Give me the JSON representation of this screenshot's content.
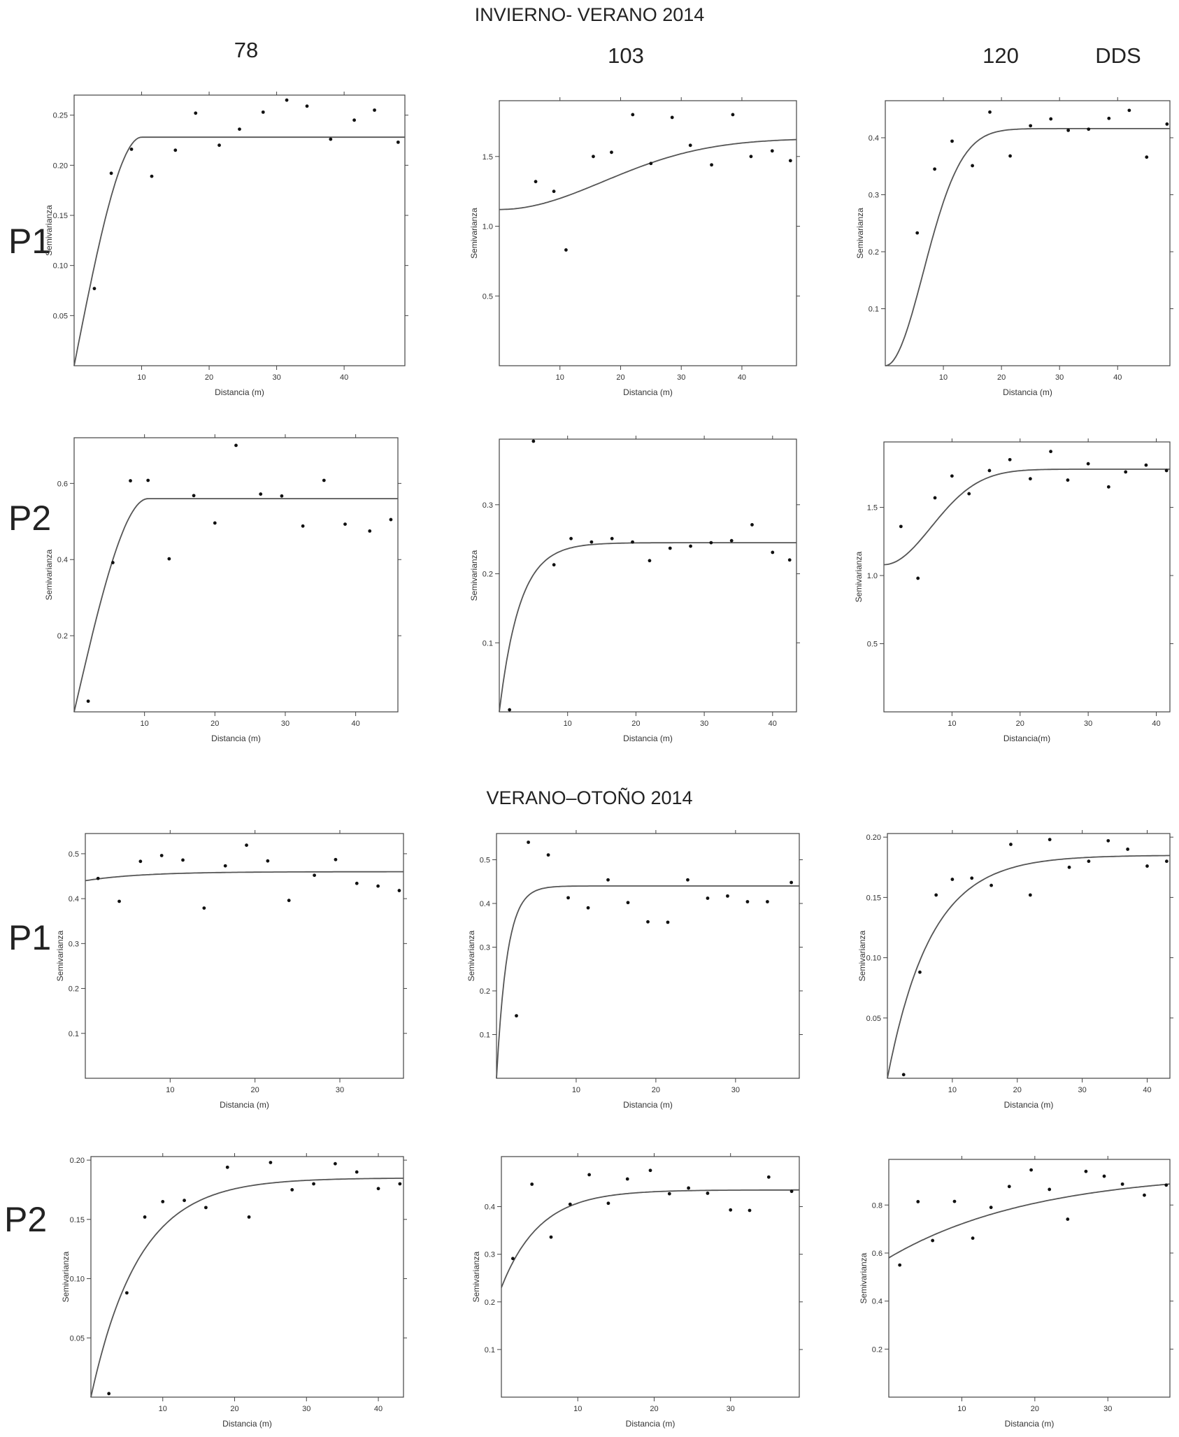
{
  "sections": [
    {
      "title": "INVIERNO- VERANO 2014"
    },
    {
      "title": "VERANO–OTOÑO 2014"
    }
  ],
  "columns": [
    {
      "label": "78"
    },
    {
      "label": "103"
    },
    {
      "label": "120"
    },
    {
      "label": "DDS"
    }
  ],
  "rows": [
    {
      "label": "P1"
    },
    {
      "label": "P2"
    },
    {
      "label": "P1"
    },
    {
      "label": "P2"
    }
  ],
  "chart_data": [
    {
      "type": "scatter",
      "section": "INVIERNO- VERANO 2014",
      "row": "P1",
      "column": "78",
      "xlabel": "Distancia (m)",
      "ylabel": "Semivarianza",
      "xlim": [
        0,
        49
      ],
      "ylim": [
        0,
        0.27
      ],
      "xticks": [
        10,
        20,
        30,
        40
      ],
      "yticks": [
        0.05,
        0.1,
        0.15,
        0.2,
        0.25
      ],
      "yticklabels": [
        "0.05",
        "0.10",
        "0.15",
        "0.20",
        "0.25"
      ],
      "points": [
        [
          3,
          0.077
        ],
        [
          5.5,
          0.192
        ],
        [
          8.5,
          0.216
        ],
        [
          11.5,
          0.189
        ],
        [
          15,
          0.215
        ],
        [
          18,
          0.252
        ],
        [
          21.5,
          0.22
        ],
        [
          24.5,
          0.236
        ],
        [
          28,
          0.253
        ],
        [
          31.5,
          0.265
        ],
        [
          34.5,
          0.259
        ],
        [
          38,
          0.226
        ],
        [
          41.5,
          0.245
        ],
        [
          44.5,
          0.255
        ],
        [
          48,
          0.223
        ]
      ],
      "model": "spherical",
      "nugget": 0,
      "sill": 0.228,
      "range": 10
    },
    {
      "type": "scatter",
      "section": "INVIERNO- VERANO 2014",
      "row": "P1",
      "column": "103",
      "xlabel": "Distancia (m)",
      "ylabel": "Semivarianza",
      "xlim": [
        0,
        49
      ],
      "ylim": [
        0,
        1.9
      ],
      "xticks": [
        10,
        20,
        30,
        40
      ],
      "yticks": [
        0.5,
        1.0,
        1.5
      ],
      "yticklabels": [
        "0.5",
        "1.0",
        "1.5"
      ],
      "points": [
        [
          6,
          1.32
        ],
        [
          9,
          1.25
        ],
        [
          11,
          0.83
        ],
        [
          15.5,
          1.5
        ],
        [
          18.5,
          1.53
        ],
        [
          22,
          1.8
        ],
        [
          25,
          1.45
        ],
        [
          28.5,
          1.78
        ],
        [
          31.5,
          1.58
        ],
        [
          35,
          1.44
        ],
        [
          38.5,
          1.8
        ],
        [
          41.5,
          1.5
        ],
        [
          45,
          1.54
        ],
        [
          48,
          1.47
        ]
      ],
      "model": "gaussian",
      "nugget": 1.12,
      "sill": 1.63,
      "range": 42
    },
    {
      "type": "scatter",
      "section": "INVIERNO- VERANO 2014",
      "row": "P1",
      "column": "120",
      "xlabel": "Distancia (m)",
      "ylabel": "Semivarianza",
      "xlim": [
        0,
        49
      ],
      "ylim": [
        0,
        0.465
      ],
      "xticks": [
        10,
        20,
        30,
        40
      ],
      "yticks": [
        0.1,
        0.2,
        0.3,
        0.4
      ],
      "yticklabels": [
        "0.1",
        "0.2",
        "0.3",
        "0.4"
      ],
      "points": [
        [
          5.5,
          0.233
        ],
        [
          8.5,
          0.345
        ],
        [
          11.5,
          0.394
        ],
        [
          15,
          0.351
        ],
        [
          18,
          0.445
        ],
        [
          21.5,
          0.368
        ],
        [
          25,
          0.421
        ],
        [
          28.5,
          0.433
        ],
        [
          31.5,
          0.413
        ],
        [
          35,
          0.415
        ],
        [
          38.5,
          0.434
        ],
        [
          42,
          0.448
        ],
        [
          45,
          0.366
        ],
        [
          48.5,
          0.424
        ]
      ],
      "model": "gaussian",
      "nugget": 0,
      "sill": 0.416,
      "range": 16
    },
    {
      "type": "scatter",
      "section": "INVIERNO- VERANO 2014",
      "row": "P2",
      "column": "78",
      "xlabel": "Distancia (m)",
      "ylabel": "Semivarianza",
      "xlim": [
        0,
        46
      ],
      "ylim": [
        0,
        0.72
      ],
      "xticks": [
        10,
        20,
        30,
        40
      ],
      "yticks": [
        0.2,
        0.4,
        0.6
      ],
      "yticklabels": [
        "0.2",
        "0.4",
        "0.6"
      ],
      "points": [
        [
          2,
          0.028
        ],
        [
          5.5,
          0.392
        ],
        [
          8,
          0.607
        ],
        [
          10.5,
          0.608
        ],
        [
          13.5,
          0.402
        ],
        [
          17,
          0.568
        ],
        [
          20,
          0.496
        ],
        [
          23,
          0.7
        ],
        [
          26.5,
          0.572
        ],
        [
          29.5,
          0.567
        ],
        [
          32.5,
          0.488
        ],
        [
          35.5,
          0.608
        ],
        [
          38.5,
          0.493
        ],
        [
          42,
          0.475
        ],
        [
          45,
          0.505
        ]
      ],
      "model": "spherical",
      "nugget": 0,
      "sill": 0.56,
      "range": 10.5
    },
    {
      "type": "scatter",
      "section": "INVIERNO- VERANO 2014",
      "row": "P2",
      "column": "103",
      "xlabel": "Distancia (m)",
      "ylabel": "Semivarianza",
      "xlim": [
        0,
        43.5
      ],
      "ylim": [
        0,
        0.395
      ],
      "xticks": [
        10,
        20,
        30,
        40
      ],
      "yticks": [
        0.1,
        0.2,
        0.3
      ],
      "yticklabels": [
        "0.1",
        "0.2",
        "0.3"
      ],
      "xticklabels": [
        "10",
        "20",
        "30",
        "40"
      ],
      "points": [
        [
          1.5,
          0.003
        ],
        [
          5,
          0.392
        ],
        [
          8,
          0.213
        ],
        [
          10.5,
          0.251
        ],
        [
          13.5,
          0.246
        ],
        [
          16.5,
          0.251
        ],
        [
          19.5,
          0.246
        ],
        [
          22,
          0.219
        ],
        [
          25,
          0.237
        ],
        [
          28,
          0.24
        ],
        [
          31,
          0.245
        ],
        [
          34,
          0.248
        ],
        [
          37,
          0.271
        ],
        [
          40,
          0.231
        ],
        [
          42.5,
          0.22
        ]
      ],
      "model": "exponential",
      "nugget": 0,
      "sill": 0.245,
      "range": 9
    },
    {
      "type": "scatter",
      "section": "INVIERNO- VERANO 2014",
      "row": "P2",
      "column": "120",
      "xlabel": "Distancia(m)",
      "ylabel": "Semivarianza",
      "xlim": [
        0,
        42
      ],
      "ylim": [
        0,
        1.98
      ],
      "xticks": [
        10,
        20,
        30,
        40
      ],
      "yticks": [
        0.5,
        1.0,
        1.5
      ],
      "yticklabels": [
        "0.5",
        "1.0",
        "1.5"
      ],
      "points": [
        [
          2.5,
          1.36
        ],
        [
          5,
          0.98
        ],
        [
          7.5,
          1.57
        ],
        [
          10,
          1.73
        ],
        [
          12.5,
          1.6
        ],
        [
          15.5,
          1.77
        ],
        [
          18.5,
          1.85
        ],
        [
          21.5,
          1.71
        ],
        [
          24.5,
          1.91
        ],
        [
          27,
          1.7
        ],
        [
          30,
          1.82
        ],
        [
          33,
          1.65
        ],
        [
          35.5,
          1.76
        ],
        [
          38.5,
          1.81
        ],
        [
          41.5,
          1.77
        ]
      ],
      "model": "gaussian",
      "nugget": 1.08,
      "sill": 1.78,
      "range": 17
    },
    {
      "type": "scatter",
      "section": "VERANO–OTOÑO 2014",
      "row": "P1",
      "column": "78",
      "xlabel": "Distancia (m)",
      "ylabel": "Semivarianza",
      "xlim": [
        0,
        37.5
      ],
      "ylim": [
        0,
        0.545
      ],
      "xticks": [
        10,
        20,
        30
      ],
      "yticks": [
        0.1,
        0.2,
        0.3,
        0.4,
        0.5
      ],
      "yticklabels": [
        "0.1",
        "0.2",
        "0.3",
        "0.4",
        "0.5"
      ],
      "points": [
        [
          1.5,
          0.445
        ],
        [
          4,
          0.394
        ],
        [
          6.5,
          0.483
        ],
        [
          9,
          0.496
        ],
        [
          11.5,
          0.486
        ],
        [
          14,
          0.379
        ],
        [
          16.5,
          0.473
        ],
        [
          19,
          0.519
        ],
        [
          21.5,
          0.484
        ],
        [
          24,
          0.396
        ],
        [
          27,
          0.452
        ],
        [
          29.5,
          0.487
        ],
        [
          32,
          0.434
        ],
        [
          34.5,
          0.428
        ],
        [
          37,
          0.418
        ]
      ],
      "model": "exponential",
      "nugget": 0.44,
      "sill": 0.46,
      "range": 20
    },
    {
      "type": "scatter",
      "section": "VERANO–OTOÑO 2014",
      "row": "P1",
      "column": "103",
      "xlabel": "Distancia (m)",
      "ylabel": "Semivarianza",
      "xlim": [
        0,
        38
      ],
      "ylim": [
        0,
        0.56
      ],
      "xticks": [
        10,
        20,
        30
      ],
      "yticks": [
        0.1,
        0.2,
        0.3,
        0.4,
        0.5
      ],
      "yticklabels": [
        "0.1",
        "0.2",
        "0.3",
        "0.4",
        "0.5"
      ],
      "points": [
        [
          2.5,
          0.143
        ],
        [
          4,
          0.54
        ],
        [
          6.5,
          0.511
        ],
        [
          9,
          0.413
        ],
        [
          11.5,
          0.39
        ],
        [
          14,
          0.454
        ],
        [
          16.5,
          0.402
        ],
        [
          19,
          0.358
        ],
        [
          21.5,
          0.357
        ],
        [
          24,
          0.454
        ],
        [
          26.5,
          0.412
        ],
        [
          29,
          0.417
        ],
        [
          31.5,
          0.404
        ],
        [
          34,
          0.404
        ],
        [
          37,
          0.448
        ]
      ],
      "model": "exponential",
      "nugget": 0,
      "sill": 0.44,
      "range": 4
    },
    {
      "type": "scatter",
      "section": "VERANO–OTOÑO 2014",
      "row": "P1",
      "column": "120",
      "xlabel": "Distancia (m)",
      "ylabel": "Semivarianza",
      "xlim": [
        0,
        43.5
      ],
      "ylim": [
        0,
        0.203
      ],
      "xticks": [
        10,
        20,
        30,
        40
      ],
      "yticks": [
        0.05,
        0.1,
        0.15,
        0.2
      ],
      "yticklabels": [
        "0.05",
        "0.10",
        "0.15",
        "0.20"
      ],
      "points": [
        [
          2.5,
          0.003
        ],
        [
          5,
          0.088
        ],
        [
          7.5,
          0.152
        ],
        [
          10,
          0.165
        ],
        [
          13,
          0.166
        ],
        [
          16,
          0.16
        ],
        [
          19,
          0.194
        ],
        [
          22,
          0.152
        ],
        [
          25,
          0.198
        ],
        [
          28,
          0.175
        ],
        [
          31,
          0.18
        ],
        [
          34,
          0.197
        ],
        [
          37,
          0.19
        ],
        [
          40,
          0.176
        ],
        [
          43,
          0.18
        ]
      ],
      "model": "exponential",
      "nugget": 0,
      "sill": 0.185,
      "range": 20
    },
    {
      "type": "scatter",
      "section": "VERANO–OTOÑO 2014",
      "row": "P2",
      "column": "78",
      "xlabel": "Distancia (m)",
      "ylabel": "Semivarianza",
      "xlim": [
        0,
        43.5
      ],
      "ylim": [
        0,
        0.203
      ],
      "xticks": [
        10,
        20,
        30,
        40
      ],
      "yticks": [
        0.05,
        0.1,
        0.15,
        0.2
      ],
      "yticklabels": [
        "0.05",
        "0.10",
        "0.15",
        "0.20"
      ],
      "points": [
        [
          2.5,
          0.003
        ],
        [
          5,
          0.088
        ],
        [
          7.5,
          0.152
        ],
        [
          10,
          0.165
        ],
        [
          13,
          0.166
        ],
        [
          16,
          0.16
        ],
        [
          19,
          0.194
        ],
        [
          22,
          0.152
        ],
        [
          25,
          0.198
        ],
        [
          28,
          0.175
        ],
        [
          31,
          0.18
        ],
        [
          34,
          0.197
        ],
        [
          37,
          0.19
        ],
        [
          40,
          0.176
        ],
        [
          43,
          0.18
        ]
      ],
      "model": "exponential",
      "nugget": 0,
      "sill": 0.185,
      "range": 20
    },
    {
      "type": "scatter",
      "section": "VERANO–OTOÑO 2014",
      "row": "P2",
      "column": "103",
      "xlabel": "Distancia (m)",
      "ylabel": "Semivarianza",
      "xlim": [
        0,
        39
      ],
      "ylim": [
        0,
        0.505
      ],
      "xticks": [
        10,
        20,
        30
      ],
      "yticks": [
        0.1,
        0.2,
        0.3,
        0.4
      ],
      "yticklabels": [
        "0.1",
        "0.2",
        "0.3",
        "0.4"
      ],
      "points": [
        [
          1.5,
          0.291
        ],
        [
          4,
          0.447
        ],
        [
          6.5,
          0.336
        ],
        [
          9,
          0.405
        ],
        [
          11.5,
          0.467
        ],
        [
          14,
          0.407
        ],
        [
          16.5,
          0.458
        ],
        [
          19.5,
          0.476
        ],
        [
          22,
          0.427
        ],
        [
          24.5,
          0.439
        ],
        [
          27,
          0.428
        ],
        [
          30,
          0.393
        ],
        [
          32.5,
          0.392
        ],
        [
          35,
          0.462
        ],
        [
          38,
          0.432
        ]
      ],
      "model": "exponential",
      "nugget": 0.23,
      "sill": 0.435,
      "range": 15
    },
    {
      "type": "scatter",
      "section": "VERANO–OTOÑO 2014",
      "row": "P2",
      "column": "120",
      "xlabel": "Distancia (m)",
      "ylabel": "Semivarianza",
      "xlim": [
        0,
        38.5
      ],
      "ylim": [
        0,
        0.99
      ],
      "xticks": [
        10,
        20,
        30
      ],
      "yticks": [
        0.2,
        0.4,
        0.6,
        0.8
      ],
      "yticklabels": [
        "0.2",
        "0.4",
        "0.6",
        "0.8"
      ],
      "points": [
        [
          1.5,
          0.55
        ],
        [
          4,
          0.814
        ],
        [
          6,
          0.652
        ],
        [
          9,
          0.815
        ],
        [
          11.5,
          0.662
        ],
        [
          14,
          0.79
        ],
        [
          16.5,
          0.877
        ],
        [
          19.5,
          0.946
        ],
        [
          22,
          0.865
        ],
        [
          24.5,
          0.741
        ],
        [
          27,
          0.94
        ],
        [
          29.5,
          0.92
        ],
        [
          32,
          0.887
        ],
        [
          35,
          0.841
        ],
        [
          38,
          0.883
        ]
      ],
      "model": "exponential",
      "nugget": 0.58,
      "sill": 0.94,
      "range": 60
    }
  ]
}
